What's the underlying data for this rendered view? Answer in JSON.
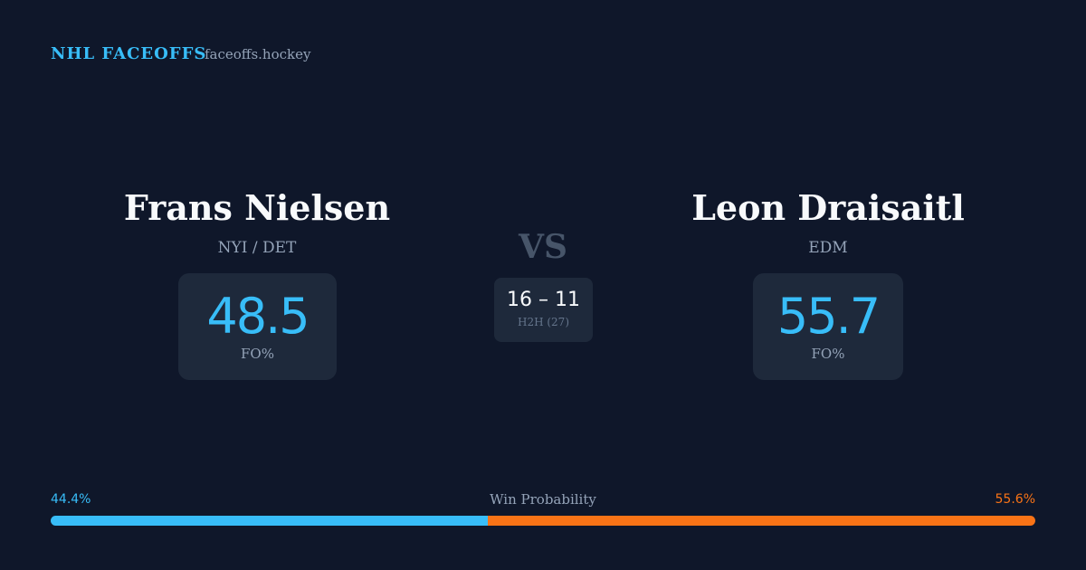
{
  "header": {
    "brand": "NHL FACEOFFS",
    "site": "faceoffs.hockey"
  },
  "players": [
    {
      "name": "Frans Nielsen",
      "team": "NYI / DET",
      "fo_pct": 48.5,
      "fo_label": "FO%"
    },
    {
      "name": "Leon Draisaitl",
      "team": "EDM",
      "fo_pct": 55.7,
      "fo_label": "FO%"
    }
  ],
  "versus": "VS",
  "h2h": {
    "score": "16 – 11",
    "label": "H2H (27)"
  },
  "win_probability": {
    "title": "Win Probability",
    "values": [
      44.4,
      55.6
    ],
    "value_labels": [
      "44.4%",
      "55.6%"
    ],
    "colors": [
      "#38bdf8",
      "#f97316"
    ]
  }
}
